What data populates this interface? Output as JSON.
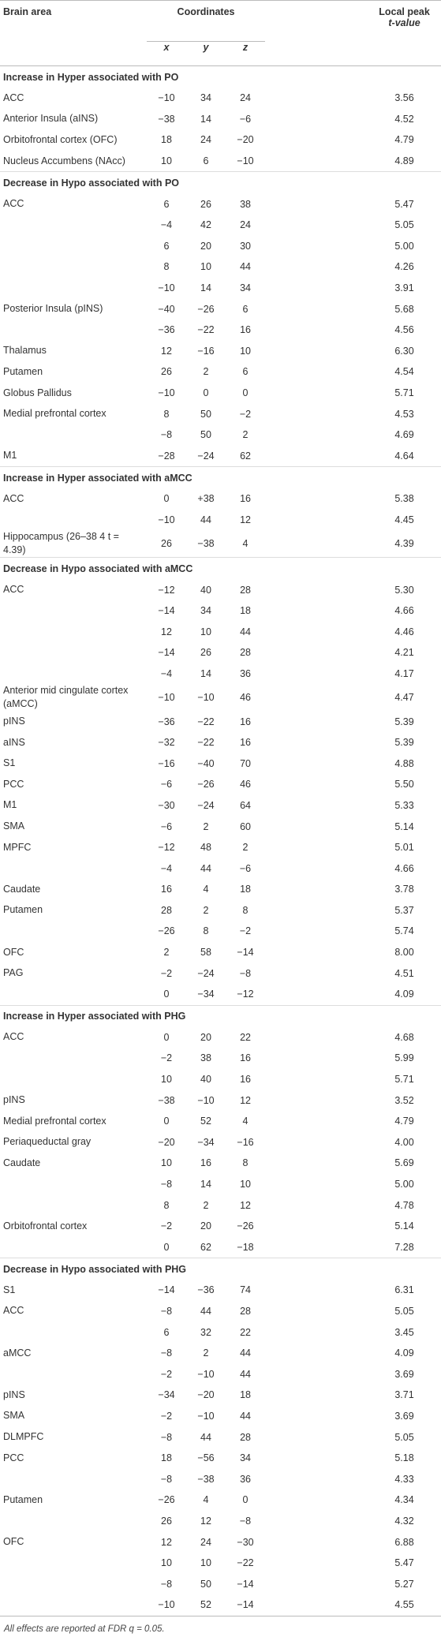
{
  "header": {
    "brain_area": "Brain area",
    "coordinates": "Coordinates",
    "x": "x",
    "y": "y",
    "z": "z",
    "local_peak": "Local peak",
    "t_value": "t-value"
  },
  "sections": [
    {
      "title": "Increase in Hyper associated with PO",
      "rows": [
        [
          "ACC",
          "−10",
          "34",
          "24",
          "3.56"
        ],
        [
          "Anterior Insula (aINS)",
          "−38",
          "14",
          "−6",
          "4.52"
        ],
        [
          "Orbitofrontal cortex (OFC)",
          "18",
          "24",
          "−20",
          "4.79"
        ],
        [
          "Nucleus Accumbens (NAcc)",
          "10",
          "6",
          "−10",
          "4.89"
        ]
      ]
    },
    {
      "title": "Decrease in Hypo associated with PO",
      "rows": [
        [
          "ACC",
          "6",
          "26",
          "38",
          "5.47"
        ],
        [
          null,
          "−4",
          "42",
          "24",
          "5.05"
        ],
        [
          null,
          "6",
          "20",
          "30",
          "5.00"
        ],
        [
          null,
          "8",
          "10",
          "44",
          "4.26"
        ],
        [
          null,
          "−10",
          "14",
          "34",
          "3.91"
        ],
        [
          "Posterior Insula (pINS)",
          "−40",
          "−26",
          "6",
          "5.68"
        ],
        [
          null,
          "−36",
          "−22",
          "16",
          "4.56"
        ],
        [
          "Thalamus",
          "12",
          "−16",
          "10",
          "6.30"
        ],
        [
          "Putamen",
          "26",
          "2",
          "6",
          "4.54"
        ],
        [
          "Globus Pallidus",
          "−10",
          "0",
          "0",
          "5.71"
        ],
        [
          "Medial prefrontal cortex",
          "8",
          "50",
          "−2",
          "4.53"
        ],
        [
          null,
          "−8",
          "50",
          "2",
          "4.69"
        ],
        [
          "M1",
          "−28",
          "−24",
          "62",
          "4.64"
        ]
      ]
    },
    {
      "title": "Increase in Hyper associated with aMCC",
      "rows": [
        [
          "ACC",
          "0",
          "+38",
          "16",
          "5.38"
        ],
        [
          null,
          "−10",
          "44",
          "12",
          "4.45"
        ],
        [
          "Hippocampus (26–38 4 t = 4.39)",
          "26",
          "−38",
          "4",
          "4.39"
        ]
      ]
    },
    {
      "title": "Decrease in Hypo associated with aMCC",
      "rows": [
        [
          "ACC",
          "−12",
          "40",
          "28",
          "5.30"
        ],
        [
          null,
          "−14",
          "34",
          "18",
          "4.66"
        ],
        [
          null,
          "12",
          "10",
          "44",
          "4.46"
        ],
        [
          null,
          "−14",
          "26",
          "28",
          "4.21"
        ],
        [
          null,
          "−4",
          "14",
          "36",
          "4.17"
        ],
        [
          "Anterior mid cingulate cortex (aMCC)",
          "−10",
          "−10",
          "46",
          "4.47"
        ],
        [
          "pINS",
          "−36",
          "−22",
          "16",
          "5.39"
        ],
        [
          "aINS",
          "−32",
          "−22",
          "16",
          "5.39"
        ],
        [
          "S1",
          "−16",
          "−40",
          "70",
          "4.88"
        ],
        [
          "PCC",
          "−6",
          "−26",
          "46",
          "5.50"
        ],
        [
          "M1",
          "−30",
          "−24",
          "64",
          "5.33"
        ],
        [
          "SMA",
          "−6",
          "2",
          "60",
          "5.14"
        ],
        [
          "MPFC",
          "−12",
          "48",
          "2",
          "5.01"
        ],
        [
          null,
          "−4",
          "44",
          "−6",
          "4.66"
        ],
        [
          "Caudate",
          "16",
          "4",
          "18",
          "3.78"
        ],
        [
          "Putamen",
          "28",
          "2",
          "8",
          "5.37"
        ],
        [
          null,
          "−26",
          "8",
          "−2",
          "5.74"
        ],
        [
          "OFC",
          "2",
          "58",
          "−14",
          "8.00"
        ],
        [
          "PAG",
          "−2",
          "−24",
          "−8",
          "4.51"
        ],
        [
          null,
          "0",
          "−34",
          "−12",
          "4.09"
        ]
      ]
    },
    {
      "title": "Increase in Hyper associated with PHG",
      "rows": [
        [
          "ACC",
          "0",
          "20",
          "22",
          "4.68"
        ],
        [
          null,
          "−2",
          "38",
          "16",
          "5.99"
        ],
        [
          null,
          "10",
          "40",
          "16",
          "5.71"
        ],
        [
          "pINS",
          "−38",
          "−10",
          "12",
          "3.52"
        ],
        [
          "Medial prefrontal cortex",
          "0",
          "52",
          "4",
          "4.79"
        ],
        [
          "Periaqueductal gray",
          "−20",
          "−34",
          "−16",
          "4.00"
        ],
        [
          "Caudate",
          "10",
          "16",
          "8",
          "5.69"
        ],
        [
          null,
          "−8",
          "14",
          "10",
          "5.00"
        ],
        [
          null,
          "8",
          "2",
          "12",
          "4.78"
        ],
        [
          "Orbitofrontal cortex",
          "−2",
          "20",
          "−26",
          "5.14"
        ],
        [
          null,
          "0",
          "62",
          "−18",
          "7.28"
        ]
      ]
    },
    {
      "title": "Decrease in Hypo associated with PHG",
      "rows": [
        [
          "S1",
          "−14",
          "−36",
          "74",
          "6.31"
        ],
        [
          "ACC",
          "−8",
          "44",
          "28",
          "5.05"
        ],
        [
          null,
          "6",
          "32",
          "22",
          "3.45"
        ],
        [
          "aMCC",
          "−8",
          "2",
          "44",
          "4.09"
        ],
        [
          null,
          "−2",
          "−10",
          "44",
          "3.69"
        ],
        [
          "pINS",
          "−34",
          "−20",
          "18",
          "3.71"
        ],
        [
          "SMA",
          "−2",
          "−10",
          "44",
          "3.69"
        ],
        [
          "DLMPFC",
          "−8",
          "44",
          "28",
          "5.05"
        ],
        [
          "PCC",
          "18",
          "−56",
          "34",
          "5.18"
        ],
        [
          null,
          "−8",
          "−38",
          "36",
          "4.33"
        ],
        [
          "Putamen",
          "−26",
          "4",
          "0",
          "4.34"
        ],
        [
          null,
          "26",
          "12",
          "−8",
          "4.32"
        ],
        [
          "OFC",
          "12",
          "24",
          "−30",
          "6.88"
        ],
        [
          null,
          "10",
          "10",
          "−22",
          "5.47"
        ],
        [
          null,
          "−8",
          "50",
          "−14",
          "5.27"
        ],
        [
          null,
          "−10",
          "52",
          "−14",
          "4.55"
        ]
      ]
    }
  ],
  "footnote": "All effects are reported at FDR q = 0.05."
}
